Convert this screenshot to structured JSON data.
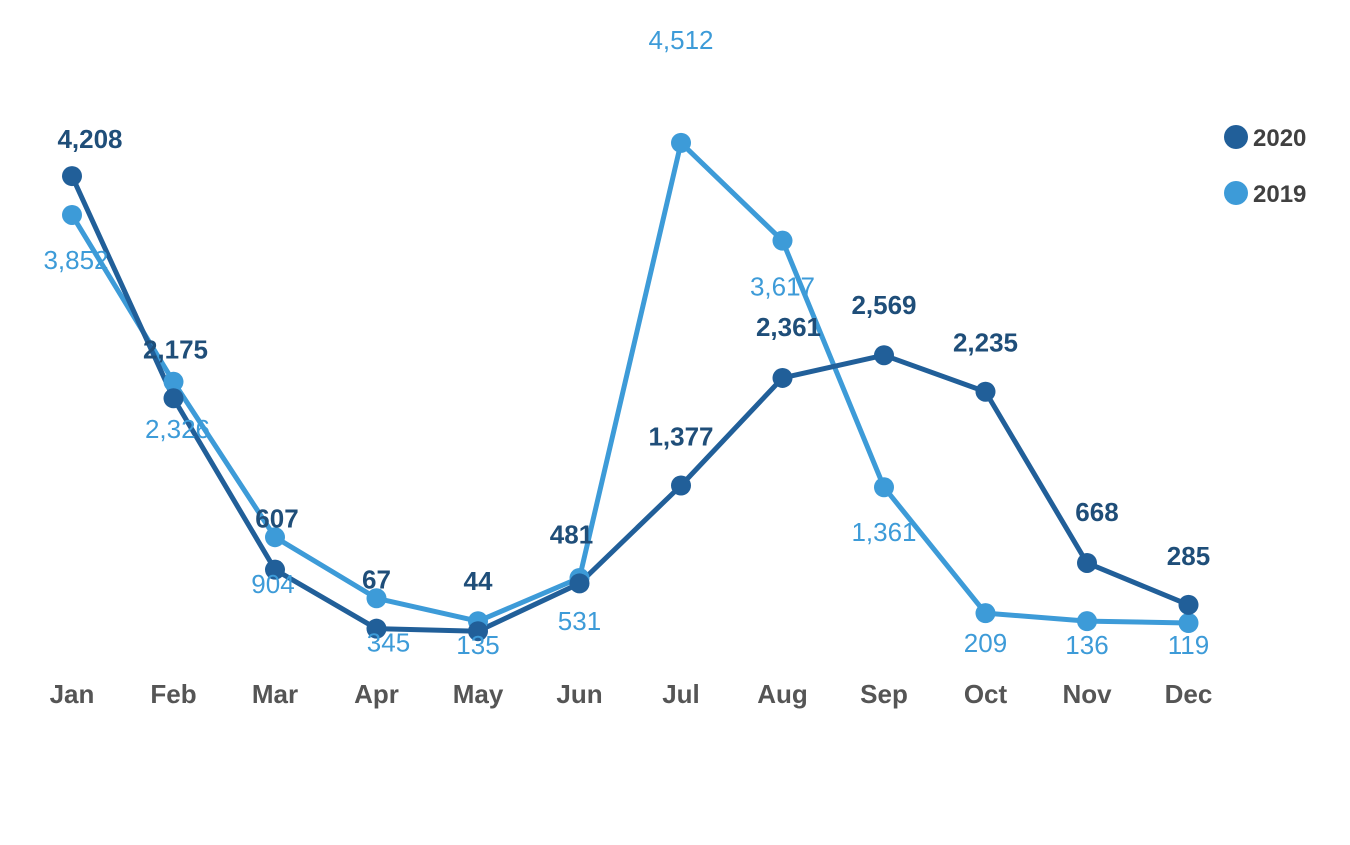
{
  "chart_data": {
    "type": "line",
    "title": "",
    "xlabel": "",
    "ylabel": "",
    "categories": [
      "Jan",
      "Feb",
      "Mar",
      "Apr",
      "May",
      "Jun",
      "Jul",
      "Aug",
      "Sep",
      "Oct",
      "Nov",
      "Dec"
    ],
    "series": [
      {
        "name": "2020",
        "color": "#215f99",
        "values": [
          4208,
          2175,
          607,
          67,
          44,
          481,
          1377,
          2361,
          2569,
          2235,
          668,
          285
        ],
        "labels": [
          "4,208",
          "2,175",
          "607",
          "67",
          "44",
          "481",
          "1,377",
          "2,361",
          "2,569",
          "2,235",
          "668",
          "285"
        ]
      },
      {
        "name": "2019",
        "color": "#3d9bd8",
        "values": [
          3852,
          2326,
          904,
          345,
          135,
          531,
          4512,
          3617,
          1361,
          209,
          136,
          119
        ],
        "labels": [
          "3,852",
          "2,326",
          "904",
          "345",
          "135",
          "531",
          "4,512",
          "3,617",
          "1,361",
          "209",
          "136",
          "119"
        ]
      }
    ],
    "grid": false,
    "axis_lines": false,
    "y_axis_visible": false,
    "legend_position": "top-right",
    "markers": "circle"
  }
}
